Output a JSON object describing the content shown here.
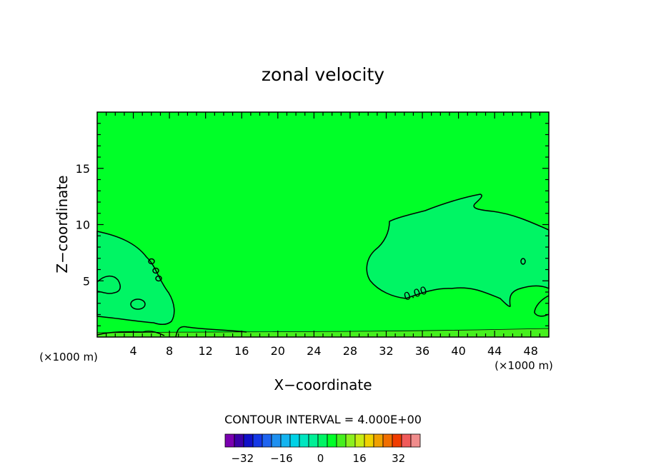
{
  "chart_data": {
    "type": "heatmap",
    "title": "zonal velocity",
    "xlabel": "X−coordinate",
    "ylabel": "Z−coordinate",
    "x_unit": "(×1000 m)",
    "z_unit": "(×1000 m)",
    "xlim": [
      0,
      50
    ],
    "ylim": [
      0,
      20
    ],
    "x_ticks": [
      "4",
      "8",
      "12",
      "16",
      "20",
      "24",
      "28",
      "32",
      "36",
      "40",
      "44",
      "48"
    ],
    "y_ticks": [
      "5",
      "10",
      "15"
    ],
    "contour_interval_label": "CONTOUR INTERVAL = 4.000E+00",
    "contour_label": "0.00",
    "colorbar": {
      "tick_labels": [
        "−32",
        "−16",
        "0",
        "16",
        "32"
      ],
      "tick_values": [
        -32,
        -16,
        0,
        16,
        32
      ],
      "range": [
        -40,
        40
      ],
      "step": 4,
      "colors": [
        "#7a00b0",
        "#3c00a8",
        "#1010c8",
        "#1438e6",
        "#1e64f0",
        "#1e90f0",
        "#14b4f0",
        "#00d2e6",
        "#00e6c0",
        "#00f096",
        "#00f564",
        "#00ff28",
        "#46f01e",
        "#8cf01e",
        "#c8ec14",
        "#f0d200",
        "#f0a000",
        "#f06e00",
        "#f03c00",
        "#f05a5a",
        "#f08c8c"
      ]
    },
    "regions": [
      {
        "name": "background",
        "value_range": [
          0,
          4
        ],
        "color": "#00ff28"
      },
      {
        "name": "left negative region",
        "value_range": [
          -4,
          0
        ],
        "color": "#00f564"
      },
      {
        "name": "right negative region",
        "value_range": [
          -4,
          0
        ],
        "color": "#00f564"
      },
      {
        "name": "near-surface positive layer",
        "value_range": [
          4,
          8
        ],
        "color": "#46f01e"
      }
    ]
  }
}
